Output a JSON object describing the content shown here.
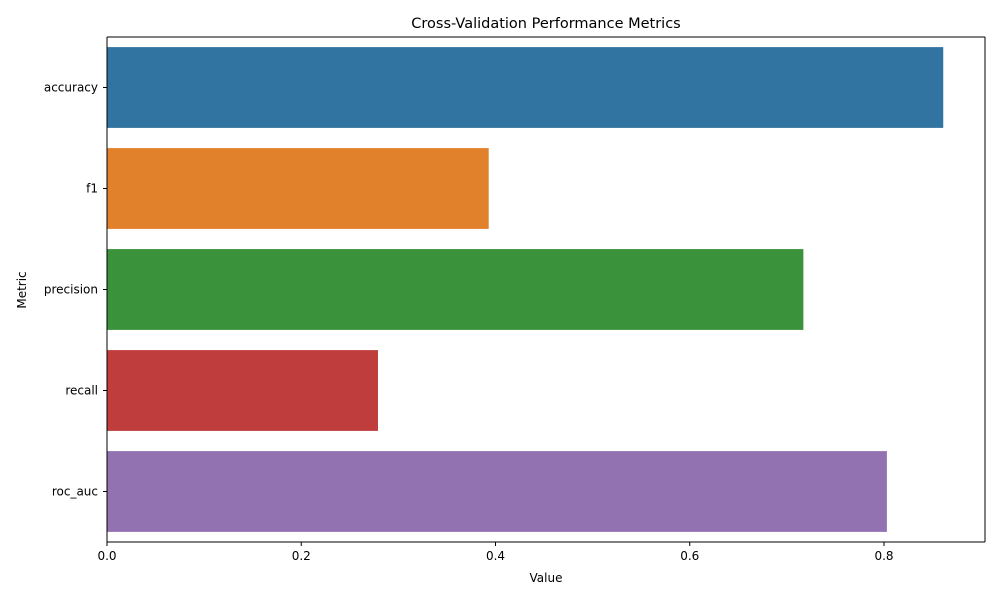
{
  "chart_data": {
    "type": "bar",
    "orientation": "horizontal",
    "title": "Cross-Validation Performance Metrics",
    "xlabel": "Value",
    "ylabel": "Metric",
    "categories": [
      "accuracy",
      "f1",
      "precision",
      "recall",
      "roc_auc"
    ],
    "values": [
      0.861,
      0.393,
      0.717,
      0.279,
      0.803
    ],
    "xlim": [
      0,
      0.904
    ],
    "xticks": [
      0.0,
      0.2,
      0.4,
      0.6,
      0.8
    ],
    "xtick_labels": [
      "0.0",
      "0.2",
      "0.4",
      "0.6",
      "0.8"
    ],
    "colors": [
      "#3274a1",
      "#e1812c",
      "#3a923a",
      "#c03d3e",
      "#9372b2"
    ],
    "grid": false,
    "legend": "none"
  }
}
